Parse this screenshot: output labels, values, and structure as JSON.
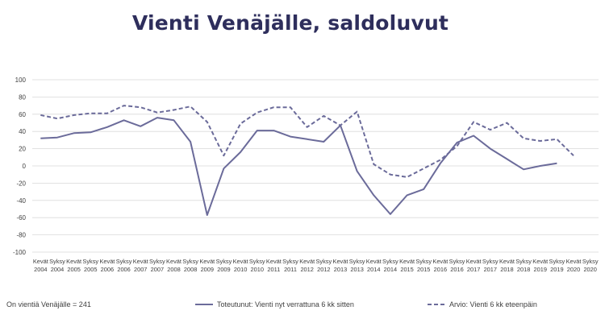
{
  "chart_data": {
    "type": "line",
    "title": "Vienti Venäjälle, saldoluvut",
    "note": "On vientiä Venäjälle = 241",
    "ylim": [
      -100,
      100
    ],
    "yticks": [
      -100,
      -80,
      -60,
      -40,
      -20,
      0,
      20,
      40,
      60,
      80,
      100
    ],
    "grid": true,
    "legend_position": "bottom",
    "categories": [
      [
        "Kevät",
        "2004"
      ],
      [
        "Syksy",
        "2004"
      ],
      [
        "Kevät",
        "2005"
      ],
      [
        "Syksy",
        "2005"
      ],
      [
        "Kevät",
        "2006"
      ],
      [
        "Syksy",
        "2006"
      ],
      [
        "Kevät",
        "2007"
      ],
      [
        "Syksy",
        "2007"
      ],
      [
        "Kevät",
        "2008"
      ],
      [
        "Syksy",
        "2008"
      ],
      [
        "Kevät",
        "2009"
      ],
      [
        "Syksy",
        "2009"
      ],
      [
        "Kevät",
        "2010"
      ],
      [
        "Syksy",
        "2010"
      ],
      [
        "Kevät",
        "2011"
      ],
      [
        "Syksy",
        "2011"
      ],
      [
        "Kevät",
        "2012"
      ],
      [
        "Syksy",
        "2012"
      ],
      [
        "Kevät",
        "2013"
      ],
      [
        "Syksy",
        "2013"
      ],
      [
        "Kevät",
        "2014"
      ],
      [
        "Syksy",
        "2014"
      ],
      [
        "Kevät",
        "2015"
      ],
      [
        "Syksy",
        "2015"
      ],
      [
        "Kevät",
        "2016"
      ],
      [
        "Syksy",
        "2016"
      ],
      [
        "Kevät",
        "2017"
      ],
      [
        "Syksy",
        "2017"
      ],
      [
        "Kevät",
        "2018"
      ],
      [
        "Syksy",
        "2018"
      ],
      [
        "Kevät",
        "2019"
      ],
      [
        "Syksy",
        "2019"
      ],
      [
        "Kevät",
        "2020"
      ],
      [
        "Syksy",
        "2020"
      ]
    ],
    "series": [
      {
        "name": "Toteutunut: Vienti nyt verrattuna 6 kk sitten",
        "style": "solid",
        "color": "#6b6b9a",
        "values": [
          32,
          33,
          38,
          39,
          45,
          53,
          46,
          56,
          53,
          28,
          -57,
          -3,
          16,
          41,
          41,
          34,
          31,
          28,
          47,
          -6,
          -34,
          -56,
          -34,
          -27,
          3,
          27,
          35,
          20,
          8,
          -4,
          0,
          3,
          null,
          null
        ]
      },
      {
        "name": "Arvio: Vienti 6 kk eteenpäin",
        "style": "dashed",
        "color": "#6b6b9a",
        "values": [
          59,
          55,
          59,
          61,
          61,
          70,
          68,
          62,
          65,
          69,
          51,
          12,
          49,
          62,
          68,
          68,
          45,
          58,
          47,
          63,
          2,
          -10,
          -13,
          -3,
          7,
          23,
          51,
          42,
          50,
          32,
          29,
          31,
          12,
          null
        ]
      }
    ]
  }
}
